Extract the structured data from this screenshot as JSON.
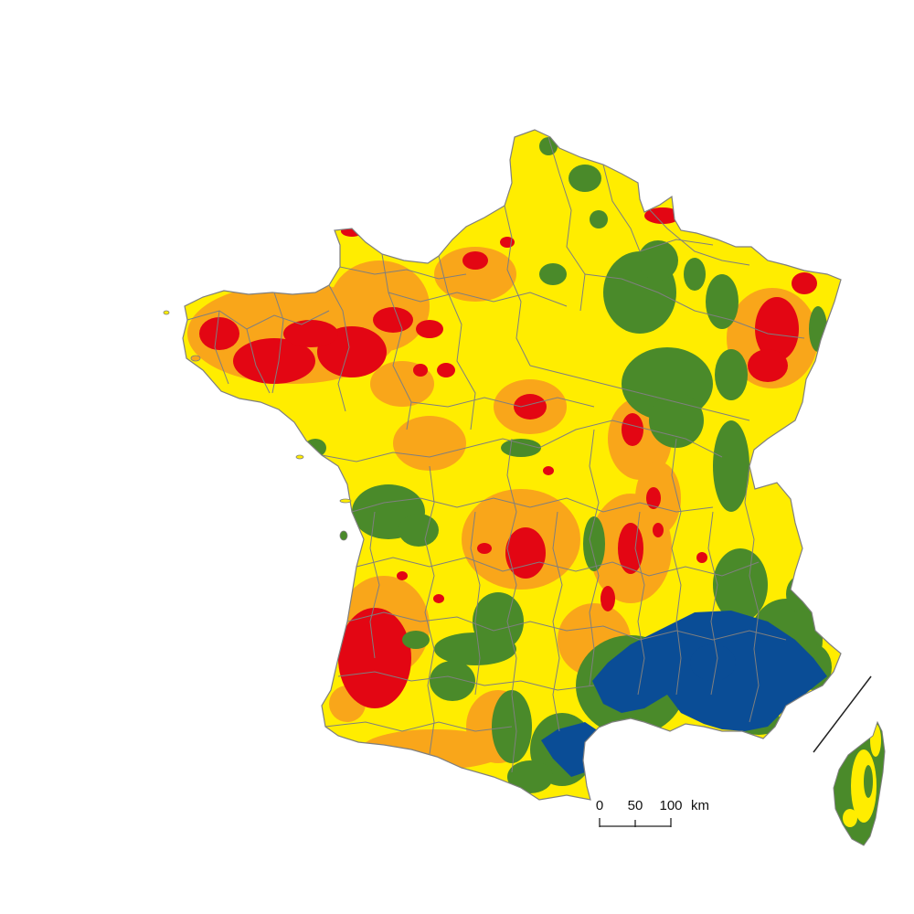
{
  "colors": {
    "background": "#ffffff",
    "class_yellow": "#ffed00",
    "class_orange": "#f9a61a",
    "class_red": "#e30613",
    "class_green": "#4a8a2a",
    "class_blue": "#0a4d96",
    "border": "#7f7f7f",
    "scale_line": "#222222"
  },
  "scale_bar": {
    "label_0": "0",
    "label_50": "50",
    "label_100": "100",
    "unit": "km"
  },
  "map_features": [
    "mainland-france",
    "corsica-inset",
    "inset-separator-line",
    "department-boundaries",
    "scale-bar"
  ]
}
